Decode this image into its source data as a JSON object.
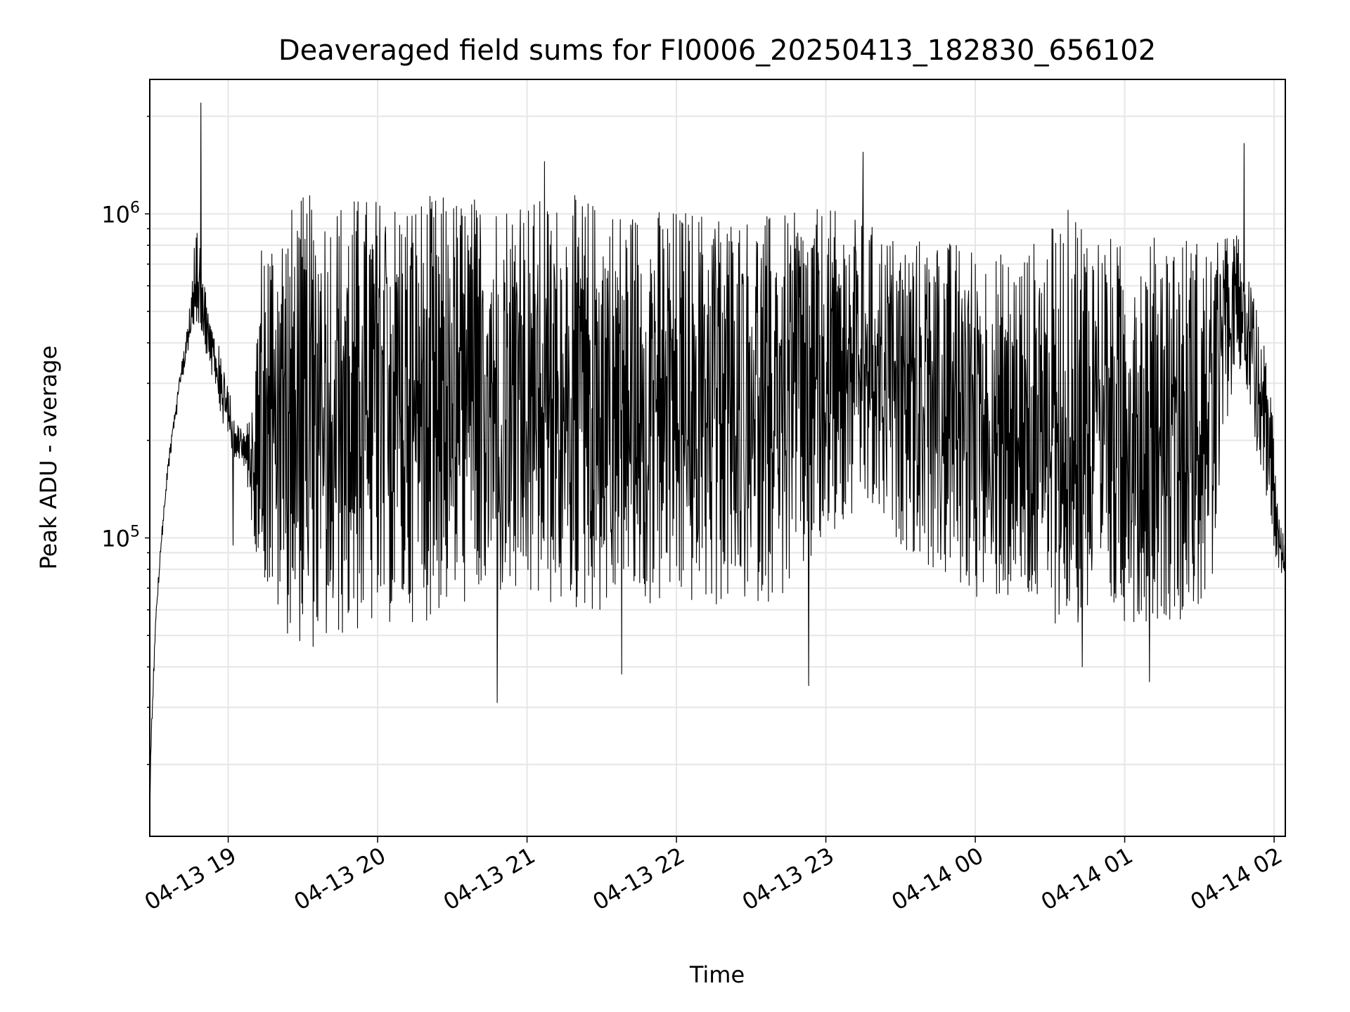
{
  "chart_data": {
    "type": "line",
    "title": "Deaveraged field sums for FI0006_20250413_182830_656102",
    "xlabel": "Time",
    "ylabel": "Peak ADU - average",
    "xscale": "time",
    "yscale": "log",
    "xlim": [
      "2025-04-13 18:28:30",
      "2025-04-14 02:04:30"
    ],
    "ylim": [
      12000,
      2600000
    ],
    "xticks": [
      {
        "t": "2025-04-13 19:00",
        "label": "04-13 19"
      },
      {
        "t": "2025-04-13 20:00",
        "label": "04-13 20"
      },
      {
        "t": "2025-04-13 21:00",
        "label": "04-13 21"
      },
      {
        "t": "2025-04-13 22:00",
        "label": "04-13 22"
      },
      {
        "t": "2025-04-13 23:00",
        "label": "04-13 23"
      },
      {
        "t": "2025-04-14 00:00",
        "label": "04-14 00"
      },
      {
        "t": "2025-04-14 01:00",
        "label": "04-14 01"
      },
      {
        "t": "2025-04-14 02:00",
        "label": "04-14 02"
      }
    ],
    "yticks": [
      {
        "value": 100000,
        "base": "10",
        "exp": "5"
      },
      {
        "value": 1000000,
        "base": "10",
        "exp": "6"
      }
    ],
    "grid": true,
    "legend": "none",
    "colors": {
      "line": "#000000",
      "grid": "#e6e6e6",
      "axes": "#000000"
    },
    "series": [
      {
        "x": [
          "2025-04-13 18:28:30",
          "2025-04-13 18:29:00",
          "2025-04-13 18:30:00",
          "2025-04-13 18:31:00",
          "2025-04-13 18:33:00",
          "2025-04-13 18:36:00",
          "2025-04-13 18:40:00",
          "2025-04-13 18:45:00",
          "2025-04-13 18:48:00",
          "2025-04-13 18:50:00",
          "2025-04-13 18:52:00",
          "2025-04-13 18:54:00",
          "2025-04-13 18:55:00",
          "2025-04-13 18:56:00",
          "2025-04-13 18:58:00",
          "2025-04-13 19:00:00",
          "2025-04-13 19:02:00",
          "2025-04-13 19:04:00",
          "2025-04-13 19:06:00",
          "2025-04-13 19:08:00",
          "2025-04-13 19:10:00",
          "2025-04-13 19:12:00",
          "2025-04-13 19:14:00",
          "2025-04-13 19:16:00",
          "2025-04-13 19:20:00",
          "2025-04-13 19:24:00",
          "2025-04-13 19:28:00",
          "2025-04-13 19:30:00",
          "2025-04-13 19:33:00",
          "2025-04-13 19:36:00",
          "2025-04-13 19:40:00",
          "2025-04-13 19:45:00",
          "2025-04-13 19:50:00",
          "2025-04-13 19:55:00",
          "2025-04-13 20:00:00",
          "2025-04-13 20:10:00",
          "2025-04-13 20:20:00",
          "2025-04-13 20:30:00",
          "2025-04-13 20:40:00",
          "2025-04-13 20:50:00",
          "2025-04-13 21:00:00",
          "2025-04-13 21:10:00",
          "2025-04-13 21:20:00",
          "2025-04-13 21:30:00",
          "2025-04-13 21:40:00",
          "2025-04-13 21:50:00",
          "2025-04-13 22:00:00",
          "2025-04-13 22:15:00",
          "2025-04-13 22:30:00",
          "2025-04-13 22:45:00",
          "2025-04-13 23:00:00",
          "2025-04-13 23:15:00",
          "2025-04-13 23:30:00",
          "2025-04-13 23:45:00",
          "2025-04-14 00:00:00",
          "2025-04-14 00:15:00",
          "2025-04-14 00:30:00",
          "2025-04-14 00:40:00",
          "2025-04-14 00:50:00",
          "2025-04-14 01:00:00",
          "2025-04-14 01:10:00",
          "2025-04-14 01:20:00",
          "2025-04-14 01:30:00",
          "2025-04-14 01:35:00",
          "2025-04-14 01:40:00",
          "2025-04-14 01:45:00",
          "2025-04-14 01:48:00",
          "2025-04-14 01:52:00",
          "2025-04-14 01:56:00",
          "2025-04-14 02:00:00",
          "2025-04-14 02:02:00",
          "2025-04-14 02:04:30"
        ],
        "hi": [
          14000,
          25000,
          40000,
          60000,
          100000,
          180000,
          300000,
          550000,
          1200000,
          700000,
          500000,
          450000,
          420000,
          400000,
          350000,
          300000,
          250000,
          230000,
          220000,
          230000,
          250000,
          600000,
          1000000,
          900000,
          1000000,
          1050000,
          1100000,
          1150000,
          1150000,
          1150000,
          1100000,
          1150000,
          1150000,
          1150000,
          1150000,
          1150000,
          1150000,
          1150000,
          1150000,
          1150000,
          1150000,
          1100000,
          1150000,
          1100000,
          1050000,
          1050000,
          1050000,
          1050000,
          1000000,
          1000000,
          1050000,
          950000,
          850000,
          850000,
          800000,
          750000,
          900000,
          1100000,
          900000,
          800000,
          850000,
          900000,
          850000,
          800000,
          850000,
          900000,
          700000,
          550000,
          400000,
          250000,
          130000,
          100000
        ],
        "lo": [
          14000,
          22000,
          35000,
          55000,
          90000,
          160000,
          260000,
          420000,
          450000,
          400000,
          350000,
          300000,
          280000,
          250000,
          220000,
          200000,
          180000,
          170000,
          160000,
          140000,
          100000,
          85000,
          75000,
          65000,
          55000,
          50000,
          48000,
          45000,
          45000,
          45000,
          45000,
          48000,
          50000,
          50000,
          52000,
          55000,
          55000,
          60000,
          62000,
          62000,
          60000,
          60000,
          58000,
          58000,
          60000,
          60000,
          62000,
          60000,
          62000,
          65000,
          90000,
          120000,
          95000,
          75000,
          65000,
          62000,
          55000,
          52000,
          52000,
          55000,
          55000,
          55000,
          60000,
          60000,
          200000,
          350000,
          300000,
          200000,
          150000,
          90000,
          80000,
          75000
        ],
        "spikes": [
          {
            "t": "2025-04-13 18:49:00",
            "v": 2200000
          },
          {
            "t": "2025-04-13 19:02:00",
            "v": 95000
          },
          {
            "t": "2025-04-13 20:48:00",
            "v": 31000
          },
          {
            "t": "2025-04-13 21:07:00",
            "v": 1450000
          },
          {
            "t": "2025-04-13 21:38:00",
            "v": 38000
          },
          {
            "t": "2025-04-13 22:53:00",
            "v": 35000
          },
          {
            "t": "2025-04-13 23:15:00",
            "v": 1550000
          },
          {
            "t": "2025-04-14 00:43:00",
            "v": 40000
          },
          {
            "t": "2025-04-14 01:10:00",
            "v": 36000
          },
          {
            "t": "2025-04-14 01:48:00",
            "v": 1650000
          }
        ]
      }
    ]
  }
}
